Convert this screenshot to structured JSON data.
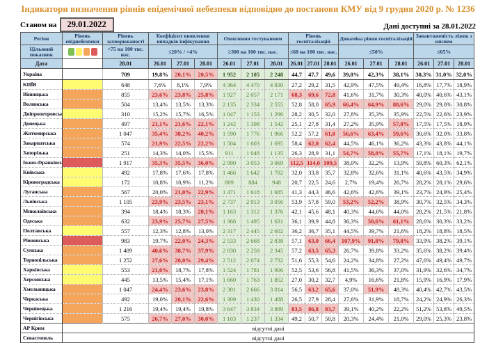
{
  "title": "Індикатори визначення рівнів епідемічної небезпеки відповідно до постанови КМУ від 9 грудня 2020 р. № 1236",
  "asof": {
    "label": "Станом на",
    "date": "29.01.2022"
  },
  "data_available": "Дані доступні за  28.01.2022",
  "no_data_text": "відсутні дані",
  "colors": {
    "header_bg": "#BCD6EA",
    "title": "#D9912F",
    "alert_bg": "#F2C4C2",
    "alert_text": "#BF1F1F",
    "good_bg": "#DFEDD9",
    "good_text": "#538135",
    "level_yellow": "#FFFC72",
    "level_orange": "#F5A55A",
    "level_red": "#DE5B5C"
  },
  "legend_colors": [
    "#7FBF53",
    "#FFF066",
    "#F5A55A",
    "#DE5B5C"
  ],
  "header": {
    "region": "Регіон",
    "target": "Цільовий показник",
    "date": "Дата",
    "incidence_date": "28.01",
    "dates": [
      "26.01",
      "27.01",
      "28.01"
    ],
    "groups": [
      {
        "label": "Рівень епіднебезпеки",
        "target": ""
      },
      {
        "label": "Рівень захворюваності",
        "target": "<75 на 100 тис. нас."
      },
      {
        "label": "Коефіцієнт виявлення випадків інфікування",
        "target": "≤20% / <4%"
      },
      {
        "label": "Охоплення тестуванням",
        "target": "≥300 на 100 тис. нас."
      },
      {
        "label": "Рівень госпіталізацій",
        "target": "≤60 на 100 тис. нас."
      },
      {
        "label": "Динаміка рівня госпіталізацій",
        "target": "≤50%"
      },
      {
        "label": "Завантаженість ліжок з киснем",
        "target": "≤65%"
      }
    ]
  },
  "rows": [
    {
      "name": "Україна",
      "total": true,
      "level": "none",
      "incidence": "709",
      "coef": [
        "19,8%",
        "20,1%",
        "20,5%"
      ],
      "coef_hl": [
        0,
        1,
        1
      ],
      "test": [
        "1 952",
        "2 105",
        "2 248"
      ],
      "hosp": [
        "44,7",
        "47,7",
        "49,6"
      ],
      "hosp_hl": [
        0,
        0,
        0
      ],
      "dyn": [
        "39,8%",
        "42,3%",
        "38,1%"
      ],
      "dyn_hl": [
        0,
        0,
        0
      ],
      "bed": [
        "30,3%",
        "31,0%",
        "32,0%"
      ]
    },
    {
      "name": "КИЇВ",
      "level": "yellow",
      "incidence": "648",
      "coef": [
        "7,6%",
        "8,1%",
        "7,9%"
      ],
      "coef_hl": [
        0,
        0,
        0
      ],
      "test": [
        "4 364",
        "4 470",
        "4 830"
      ],
      "hosp": [
        "27,2",
        "29,2",
        "31,5"
      ],
      "hosp_hl": [
        0,
        0,
        0
      ],
      "dyn": [
        "42,9%",
        "47,5%",
        "49,4%"
      ],
      "dyn_hl": [
        0,
        0,
        0
      ],
      "bed": [
        "16,8%",
        "17,7%",
        "18,9%"
      ]
    },
    {
      "name": "Вінницька",
      "level": "orange",
      "incidence": "855",
      "coef": [
        "23,6%",
        "23,8%",
        "25,8%"
      ],
      "coef_hl": [
        1,
        1,
        1
      ],
      "test": [
        "1 927",
        "2 057",
        "2 171"
      ],
      "hosp": [
        "68,3",
        "69,6",
        "72,8"
      ],
      "hosp_hl": [
        1,
        1,
        1
      ],
      "dyn": [
        "41,6%",
        "31,7%",
        "30,3%"
      ],
      "dyn_hl": [
        0,
        0,
        0
      ],
      "bed": [
        "40,0%",
        "40,6%",
        "43,1%"
      ]
    },
    {
      "name": "Волинська",
      "level": "orange",
      "incidence": "504",
      "coef": [
        "13,4%",
        "13,5%",
        "13,3%"
      ],
      "coef_hl": [
        0,
        0,
        0
      ],
      "test": [
        "2 135",
        "2 334",
        "2 555"
      ],
      "hosp": [
        "52,8",
        "58,0",
        "65,9"
      ],
      "hosp_hl": [
        0,
        0,
        1
      ],
      "dyn": [
        "66,4%",
        "64,9%",
        "80,6%"
      ],
      "dyn_hl": [
        1,
        1,
        1
      ],
      "bed": [
        "29,0%",
        "29,0%",
        "30,8%"
      ]
    },
    {
      "name": "Дніпропетровська",
      "level": "yellow",
      "incidence": "310",
      "coef": [
        "15,2%",
        "15,7%",
        "16,5%"
      ],
      "coef_hl": [
        0,
        0,
        0
      ],
      "test": [
        "1 047",
        "1 153",
        "1 296"
      ],
      "hosp": [
        "28,2",
        "30,5",
        "32,0"
      ],
      "hosp_hl": [
        0,
        0,
        0
      ],
      "dyn": [
        "27,8%",
        "35,3%",
        "35,9%"
      ],
      "dyn_hl": [
        0,
        0,
        0
      ],
      "bed": [
        "22,5%",
        "22,6%",
        "23,9%"
      ]
    },
    {
      "name": "Донецька",
      "level": "orange",
      "incidence": "497",
      "coef": [
        "21,1%",
        "21,6%",
        "22,1%"
      ],
      "coef_hl": [
        1,
        1,
        1
      ],
      "test": [
        "1 242",
        "1 398",
        "1 542"
      ],
      "hosp": [
        "25,1",
        "27,8",
        "31,4"
      ],
      "hosp_hl": [
        0,
        0,
        0
      ],
      "dyn": [
        "27,2%",
        "35,9%",
        "57,8%"
      ],
      "dyn_hl": [
        0,
        0,
        1
      ],
      "bed": [
        "17,5%",
        "17,5%",
        "18,9%"
      ]
    },
    {
      "name": "Житомирська",
      "level": "orange",
      "incidence": "1 047",
      "coef": [
        "35,4%",
        "38,2%",
        "40,2%"
      ],
      "coef_hl": [
        1,
        1,
        1
      ],
      "test": [
        "1 590",
        "1 776",
        "1 966"
      ],
      "hosp": [
        "52,2",
        "57,2",
        "61,0"
      ],
      "hosp_hl": [
        0,
        0,
        1
      ],
      "dyn": [
        "56,6%",
        "63,4%",
        "59,6%"
      ],
      "dyn_hl": [
        1,
        1,
        1
      ],
      "bed": [
        "30,6%",
        "32,0%",
        "33,8%"
      ]
    },
    {
      "name": "Закарпатська",
      "level": "orange",
      "incidence": "574",
      "coef": [
        "21,9%",
        "22,5%",
        "22,2%"
      ],
      "coef_hl": [
        1,
        1,
        1
      ],
      "test": [
        "1 504",
        "1 603",
        "1 695"
      ],
      "hosp": [
        "58,4",
        "62,0",
        "62,4"
      ],
      "hosp_hl": [
        0,
        1,
        1
      ],
      "dyn": [
        "44,5%",
        "46,1%",
        "36,2%"
      ],
      "dyn_hl": [
        0,
        0,
        0
      ],
      "bed": [
        "43,3%",
        "43,8%",
        "44,1%"
      ]
    },
    {
      "name": "Запорізька",
      "level": "orange",
      "incidence": "251",
      "coef": [
        "14,3%",
        "14,0%",
        "15,5%"
      ],
      "coef_hl": [
        0,
        0,
        0
      ],
      "test": [
        "911",
        "1 048",
        "1 135"
      ],
      "hosp": [
        "26,3",
        "28,9",
        "31,1"
      ],
      "hosp_hl": [
        0,
        0,
        0
      ],
      "dyn": [
        "54,7%",
        "58,8%",
        "55,7%"
      ],
      "dyn_hl": [
        1,
        1,
        1
      ],
      "bed": [
        "17,1%",
        "18,1%",
        "19,7%"
      ]
    },
    {
      "name": "Івано-Франківська",
      "level": "red",
      "incidence": "1 917",
      "coef": [
        "35,3%",
        "35,5%",
        "36,0%"
      ],
      "coef_hl": [
        1,
        1,
        1
      ],
      "test": [
        "2 990",
        "3 053",
        "3 069"
      ],
      "hosp": [
        "112,5",
        "114,0",
        "109,5"
      ],
      "hosp_hl": [
        1,
        1,
        1
      ],
      "dyn": [
        "38,0%",
        "32,2%",
        "13,9%"
      ],
      "dyn_hl": [
        0,
        0,
        0
      ],
      "bed": [
        "59,8%",
        "60,3%",
        "62,1%"
      ]
    },
    {
      "name": "Київська",
      "level": "yellow",
      "incidence": "492",
      "coef": [
        "17,8%",
        "17,6%",
        "17,8%"
      ],
      "coef_hl": [
        0,
        0,
        0
      ],
      "test": [
        "1 466",
        "1 642",
        "1 782"
      ],
      "hosp": [
        "32,0",
        "33,8",
        "35,7"
      ],
      "hosp_hl": [
        0,
        0,
        0
      ],
      "dyn": [
        "32,8%",
        "32,6%",
        "31,1%"
      ],
      "dyn_hl": [
        0,
        0,
        0
      ],
      "bed": [
        "40,6%",
        "43,5%",
        "34,9%"
      ]
    },
    {
      "name": "Кіровоградська",
      "level": "yellow",
      "incidence": "172",
      "coef": [
        "10,8%",
        "10,9%",
        "11,2%"
      ],
      "coef_hl": [
        0,
        0,
        0
      ],
      "test": [
        "809",
        "884",
        "948"
      ],
      "hosp": [
        "20,7",
        "22,5",
        "24,6"
      ],
      "hosp_hl": [
        0,
        0,
        0
      ],
      "dyn": [
        "2,7%",
        "19,4%",
        "26,7%"
      ],
      "dyn_hl": [
        0,
        0,
        0
      ],
      "bed": [
        "28,2%",
        "28,1%",
        "29,6%"
      ]
    },
    {
      "name": "Луганська",
      "level": "orange",
      "incidence": "567",
      "coef": [
        "20,0%",
        "21,0%",
        "22,9%"
      ],
      "coef_hl": [
        0,
        1,
        1
      ],
      "test": [
        "1 471",
        "1 618",
        "1 685"
      ],
      "hosp": [
        "41,3",
        "44,3",
        "46,6"
      ],
      "hosp_hl": [
        0,
        0,
        0
      ],
      "dyn": [
        "42,6%",
        "42,6%",
        "39,1%"
      ],
      "dyn_hl": [
        0,
        0,
        0
      ],
      "bed": [
        "23,7%",
        "24,9%",
        "25,4%"
      ]
    },
    {
      "name": "Львівська",
      "level": "orange",
      "incidence": "1 105",
      "coef": [
        "23,9%",
        "23,5%",
        "23,1%"
      ],
      "coef_hl": [
        1,
        1,
        1
      ],
      "test": [
        "2 737",
        "2 913",
        "3 056"
      ],
      "hosp": [
        "53,9",
        "57,8",
        "59,0"
      ],
      "hosp_hl": [
        0,
        0,
        0
      ],
      "dyn": [
        "53,2%",
        "52,2%",
        "38,9%"
      ],
      "dyn_hl": [
        1,
        1,
        0
      ],
      "bed": [
        "30,7%",
        "32,5%",
        "34,3%"
      ]
    },
    {
      "name": "Миколаївська",
      "level": "orange",
      "incidence": "394",
      "coef": [
        "18,4%",
        "18,3%",
        "20,1%"
      ],
      "coef_hl": [
        0,
        0,
        1
      ],
      "test": [
        "1 163",
        "1 312",
        "1 376"
      ],
      "hosp": [
        "42,1",
        "45,6",
        "48,1"
      ],
      "hosp_hl": [
        0,
        0,
        0
      ],
      "dyn": [
        "40,3%",
        "44,6%",
        "44,0%"
      ],
      "dyn_hl": [
        0,
        0,
        0
      ],
      "bed": [
        "28,2%",
        "21,5%",
        "21,8%"
      ]
    },
    {
      "name": "Одеська",
      "level": "orange",
      "incidence": "632",
      "coef": [
        "23,9%",
        "25,7%",
        "27,5%"
      ],
      "coef_hl": [
        1,
        1,
        1
      ],
      "test": [
        "1 368",
        "1 495",
        "1 631"
      ],
      "hosp": [
        "36,1",
        "39,9",
        "44,8"
      ],
      "hosp_hl": [
        0,
        0,
        0
      ],
      "dyn": [
        "36,3%",
        "50,6%",
        "61,1%"
      ],
      "dyn_hl": [
        0,
        1,
        1
      ],
      "bed": [
        "28,6%",
        "30,3%",
        "33,2%"
      ]
    },
    {
      "name": "Полтавська",
      "level": "yellow",
      "incidence": "557",
      "coef": [
        "12,3%",
        "12,8%",
        "13,0%"
      ],
      "coef_hl": [
        0,
        0,
        0
      ],
      "test": [
        "2 317",
        "2 445",
        "2 602"
      ],
      "hosp": [
        "36,2",
        "36,7",
        "35,1"
      ],
      "hosp_hl": [
        0,
        0,
        0
      ],
      "dyn": [
        "44,5%",
        "39,7%",
        "21,6%"
      ],
      "dyn_hl": [
        0,
        0,
        0
      ],
      "bed": [
        "18,2%",
        "18,8%",
        "18,5%"
      ]
    },
    {
      "name": "Рівненська",
      "level": "red",
      "incidence": "983",
      "coef": [
        "19,7%",
        "22,0%",
        "24,3%"
      ],
      "coef_hl": [
        0,
        1,
        1
      ],
      "test": [
        "2 533",
        "2 668",
        "2 838"
      ],
      "hosp": [
        "57,1",
        "63,0",
        "66,4"
      ],
      "hosp_hl": [
        0,
        1,
        1
      ],
      "dyn": [
        "107,9%",
        "91,8%",
        "79,8%"
      ],
      "dyn_hl": [
        1,
        1,
        1
      ],
      "bed": [
        "33,9%",
        "38,2%",
        "39,1%"
      ]
    },
    {
      "name": "Сумська",
      "level": "orange",
      "incidence": "1 409",
      "coef": [
        "40,6%",
        "38,7%",
        "37,9%"
      ],
      "coef_hl": [
        1,
        1,
        1
      ],
      "test": [
        "2 030",
        "2 258",
        "2 345"
      ],
      "hosp": [
        "57,2",
        "63,5",
        "65,3"
      ],
      "hosp_hl": [
        0,
        1,
        1
      ],
      "dyn": [
        "26,7%",
        "39,8%",
        "33,2%"
      ],
      "dyn_hl": [
        0,
        0,
        0
      ],
      "bed": [
        "35,6%",
        "38,2%",
        "39,4%"
      ]
    },
    {
      "name": "Тернопільська",
      "level": "orange",
      "incidence": "1 252",
      "coef": [
        "27,6%",
        "28,0%",
        "29,4%"
      ],
      "coef_hl": [
        1,
        1,
        1
      ],
      "test": [
        "2 512",
        "2 674",
        "2 732"
      ],
      "hosp": [
        "51,6",
        "55,3",
        "54,6"
      ],
      "hosp_hl": [
        0,
        0,
        0
      ],
      "dyn": [
        "24,2%",
        "34,8%",
        "27,2%"
      ],
      "dyn_hl": [
        0,
        0,
        0
      ],
      "bed": [
        "47,6%",
        "49,4%",
        "49,7%"
      ]
    },
    {
      "name": "Харківська",
      "level": "yellow",
      "incidence": "553",
      "coef": [
        "21,0%",
        "18,7%",
        "17,8%"
      ],
      "coef_hl": [
        1,
        0,
        0
      ],
      "test": [
        "1 524",
        "1 781",
        "1 906"
      ],
      "hosp": [
        "52,5",
        "53,6",
        "56,8"
      ],
      "hosp_hl": [
        0,
        0,
        0
      ],
      "dyn": [
        "41,5%",
        "36,3%",
        "37,0%"
      ],
      "dyn_hl": [
        0,
        0,
        0
      ],
      "bed": [
        "31,9%",
        "32,6%",
        "34,7%"
      ]
    },
    {
      "name": "Херсонська",
      "level": "yellow",
      "incidence": "445",
      "coef": [
        "13,5%",
        "15,4%",
        "17,1%"
      ],
      "coef_hl": [
        0,
        0,
        0
      ],
      "test": [
        "1 660",
        "1 763",
        "1 852"
      ],
      "hosp": [
        "27,0",
        "30,2",
        "32,7"
      ],
      "hosp_hl": [
        0,
        0,
        0
      ],
      "dyn": [
        "4,9%",
        "16,6%",
        "21,8%"
      ],
      "dyn_hl": [
        0,
        0,
        0
      ],
      "bed": [
        "15,9%",
        "16,9%",
        "17,9%"
      ]
    },
    {
      "name": "Хмельницька",
      "level": "orange",
      "incidence": "1 047",
      "coef": [
        "24,4%",
        "23,6%",
        "23,8%"
      ],
      "coef_hl": [
        1,
        1,
        1
      ],
      "test": [
        "2 301",
        "2 666",
        "3 014"
      ],
      "hosp": [
        "56,5",
        "63,2",
        "65,6"
      ],
      "hosp_hl": [
        0,
        1,
        1
      ],
      "dyn": [
        "37,0%",
        "51,9%",
        "48,3%"
      ],
      "dyn_hl": [
        0,
        1,
        0
      ],
      "bed": [
        "40,4%",
        "42,7%",
        "43,5%"
      ]
    },
    {
      "name": "Черкаська",
      "level": "orange",
      "incidence": "492",
      "coef": [
        "19,0%",
        "20,1%",
        "22,6%"
      ],
      "coef_hl": [
        0,
        1,
        1
      ],
      "test": [
        "1 309",
        "1 430",
        "1 488"
      ],
      "hosp": [
        "26,5",
        "27,9",
        "28,4"
      ],
      "hosp_hl": [
        0,
        0,
        0
      ],
      "dyn": [
        "27,6%",
        "31,9%",
        "18,7%"
      ],
      "dyn_hl": [
        0,
        0,
        0
      ],
      "bed": [
        "24,2%",
        "24,9%",
        "26,3%"
      ]
    },
    {
      "name": "Чернівецька",
      "level": "orange",
      "incidence": "1 216",
      "coef": [
        "19,4%",
        "19,4%",
        "19,8%"
      ],
      "coef_hl": [
        0,
        0,
        0
      ],
      "test": [
        "3 647",
        "3 834",
        "3 889"
      ],
      "hosp": [
        "83,5",
        "86,8",
        "83,7"
      ],
      "hosp_hl": [
        1,
        1,
        1
      ],
      "dyn": [
        "39,1%",
        "40,2%",
        "22,2%"
      ],
      "dyn_hl": [
        0,
        0,
        0
      ],
      "bed": [
        "51,2%",
        "53,8%",
        "49,5%"
      ]
    },
    {
      "name": "Чернігівська",
      "level": "orange",
      "incidence": "575",
      "coef": [
        "26,7%",
        "27,0%",
        "30,0%"
      ],
      "coef_hl": [
        1,
        1,
        1
      ],
      "test": [
        "1 103",
        "1 237",
        "1 334"
      ],
      "hosp": [
        "49,2",
        "50,7",
        "50,8"
      ],
      "hosp_hl": [
        0,
        0,
        0
      ],
      "dyn": [
        "20,3%",
        "24,4%",
        "21,0%"
      ],
      "dyn_hl": [
        0,
        0,
        0
      ],
      "bed": [
        "29,0%",
        "25,3%",
        "23,8%"
      ]
    },
    {
      "name": "АР Крим",
      "no_data": true
    },
    {
      "name": "Севастополь",
      "no_data": true
    }
  ]
}
